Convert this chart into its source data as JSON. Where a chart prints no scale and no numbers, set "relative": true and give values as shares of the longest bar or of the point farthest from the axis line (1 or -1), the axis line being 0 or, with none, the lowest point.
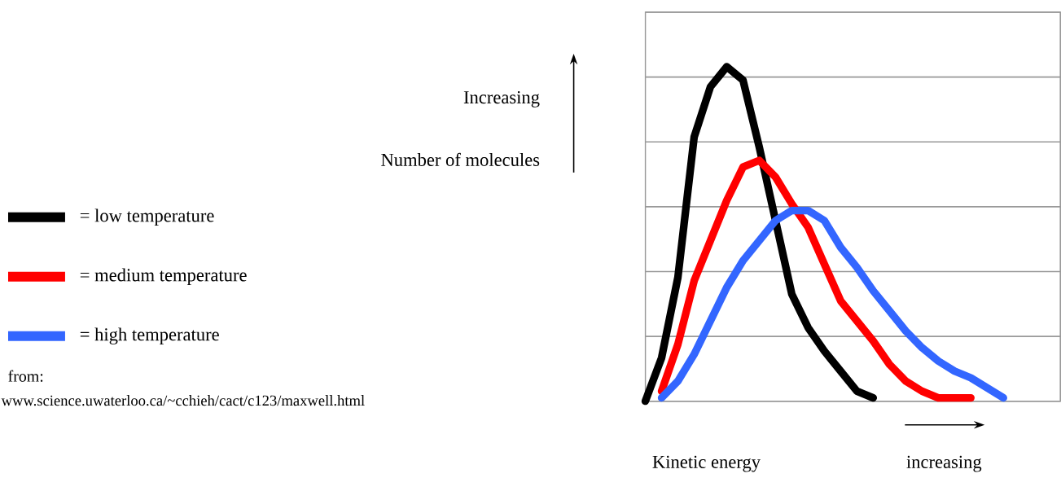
{
  "chart_data": {
    "type": "line",
    "relative": true,
    "annotations": [
      "Increasing",
      "Number of molecules",
      "Kinetic energy",
      "increasing",
      "from:",
      "www.science.uwaterloo.ca/~cchieh/cact/c123/maxwell.html"
    ],
    "categories": [
      null,
      null,
      null,
      null,
      null,
      null,
      null,
      null,
      null,
      null,
      null,
      null,
      null,
      null,
      null,
      null,
      null,
      null,
      null,
      null,
      null,
      null,
      null,
      null,
      null,
      null
    ],
    "series": [
      {
        "name": "= low temperature",
        "color": "#000000",
        "values": [
          0,
          0.13,
          0.37,
          0.79,
          0.94,
          1.0,
          0.96,
          0.76,
          0.54,
          0.32,
          0.22,
          0.15,
          0.09,
          0.03,
          0.01,
          null,
          null,
          null,
          null,
          null,
          null,
          null,
          null,
          null,
          null,
          null
        ]
      },
      {
        "name": "= medium temperature",
        "color": "#ff0000",
        "values": [
          null,
          0.03,
          0.17,
          0.36,
          0.48,
          0.6,
          0.7,
          0.72,
          0.67,
          0.59,
          0.52,
          0.41,
          0.3,
          0.24,
          0.18,
          0.11,
          0.06,
          0.03,
          0.01,
          0.01,
          0.01,
          null,
          null,
          null,
          null,
          null
        ]
      },
      {
        "name": "= high temperature",
        "color": "#3366ff",
        "values": [
          null,
          0.01,
          0.06,
          0.14,
          0.24,
          0.34,
          0.42,
          0.48,
          0.54,
          0.57,
          0.57,
          0.54,
          0.46,
          0.4,
          0.33,
          0.27,
          0.21,
          0.16,
          0.12,
          0.09,
          0.07,
          0.04,
          0.01,
          null,
          null,
          null
        ]
      }
    ],
    "grid": "y",
    "legend": "left"
  }
}
